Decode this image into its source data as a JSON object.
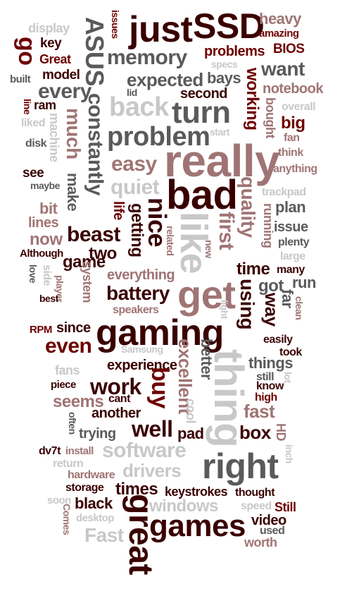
{
  "palette": {
    "dark_red": "#6e0000",
    "dark_gray": "#5a5a5a",
    "mauve": "#a07474",
    "light_gray": "#c8c8c8",
    "black_red": "#3a0000"
  },
  "words": [
    "just",
    "SSD",
    "heavy",
    "amazing",
    "BIOS",
    "display",
    "issues",
    "key",
    "Great",
    "go",
    "ASUS",
    "memory",
    "problems",
    "specs",
    "want",
    "model",
    "built",
    "lid",
    "expected",
    "bays",
    "working",
    "notebook",
    "every",
    "ram",
    "second",
    "line",
    "back",
    "turn",
    "bought",
    "overall",
    "liked",
    "machine",
    "much",
    "constantly",
    "start",
    "big",
    "fan",
    "problem",
    "disk",
    "think",
    "easy",
    "really",
    "see",
    "anything",
    "maybe",
    "quiet",
    "make",
    "bad",
    "quality",
    "trackpad",
    "plan",
    "bit",
    "running",
    "life",
    "nice",
    "lines",
    "like",
    "first",
    "issue",
    "beast",
    "getting",
    "related",
    "now",
    "new",
    "plenty",
    "large",
    "Although",
    "two",
    "game",
    "system",
    "time",
    "many",
    "love",
    "side",
    "everything",
    "got",
    "run",
    "player",
    "battery",
    "using",
    "clean",
    "best",
    "far",
    "speakers",
    "get",
    "way",
    "light",
    "RPM",
    "since",
    "gaming",
    "easily",
    "even",
    "took",
    "Samsung",
    "better",
    "things",
    "experience",
    "excellent",
    "still",
    "fans",
    "lot",
    "buy",
    "know",
    "piece",
    "work",
    "thing",
    "high",
    "seems",
    "cant",
    "cool",
    "another",
    "fast",
    "often",
    "trying",
    "well",
    "pad",
    "box",
    "HD",
    "dv7t",
    "install",
    "software",
    "right",
    "inch",
    "return",
    "drivers",
    "hardware",
    "storage",
    "times",
    "keystrokes",
    "thought",
    "soon",
    "black",
    "windows",
    "speed",
    "Still",
    "great",
    "Comes",
    "desktop",
    "games",
    "video",
    "used",
    "Fast",
    "worth"
  ]
}
